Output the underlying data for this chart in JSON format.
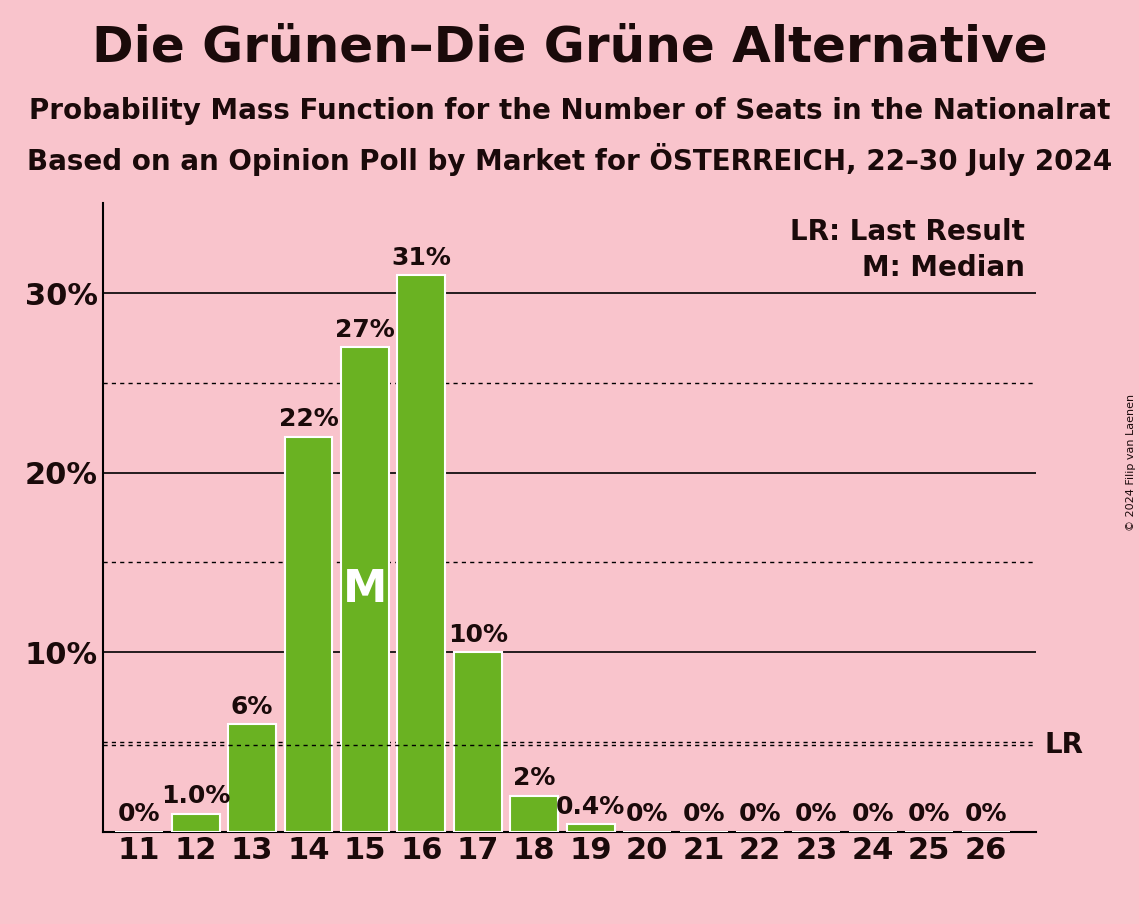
{
  "title": "Die Grünen–Die Grüne Alternative",
  "subtitle1": "Probability Mass Function for the Number of Seats in the Nationalrat",
  "subtitle2": "Based on an Opinion Poll by Market for ÖSTERREICH, 22–30 July 2024",
  "copyright": "© 2024 Filip van Laenen",
  "seats": [
    11,
    12,
    13,
    14,
    15,
    16,
    17,
    18,
    19,
    20,
    21,
    22,
    23,
    24,
    25,
    26
  ],
  "values": [
    0.0,
    1.0,
    6.0,
    22.0,
    27.0,
    31.0,
    10.0,
    2.0,
    0.4,
    0.0,
    0.0,
    0.0,
    0.0,
    0.0,
    0.0,
    0.0
  ],
  "bar_color": "#6ab222",
  "bar_edge_color": "#ffffff",
  "background_color": "#f9c4cc",
  "text_color": "#1a0a0a",
  "median_seat": 15,
  "median_label": "M",
  "lr_value": 4.8,
  "lr_label": "LR",
  "lr_legend": "LR: Last Result",
  "m_legend": "M: Median",
  "ylim": [
    0,
    35
  ],
  "solid_yticks": [
    10,
    20,
    30
  ],
  "dotted_yticks": [
    5,
    15,
    25
  ],
  "ytick_labels_show": [
    10,
    20,
    30
  ],
  "title_fontsize": 36,
  "subtitle_fontsize": 20,
  "tick_fontsize": 22,
  "legend_fontsize": 20,
  "bar_label_fontsize": 18,
  "median_fontsize": 32
}
